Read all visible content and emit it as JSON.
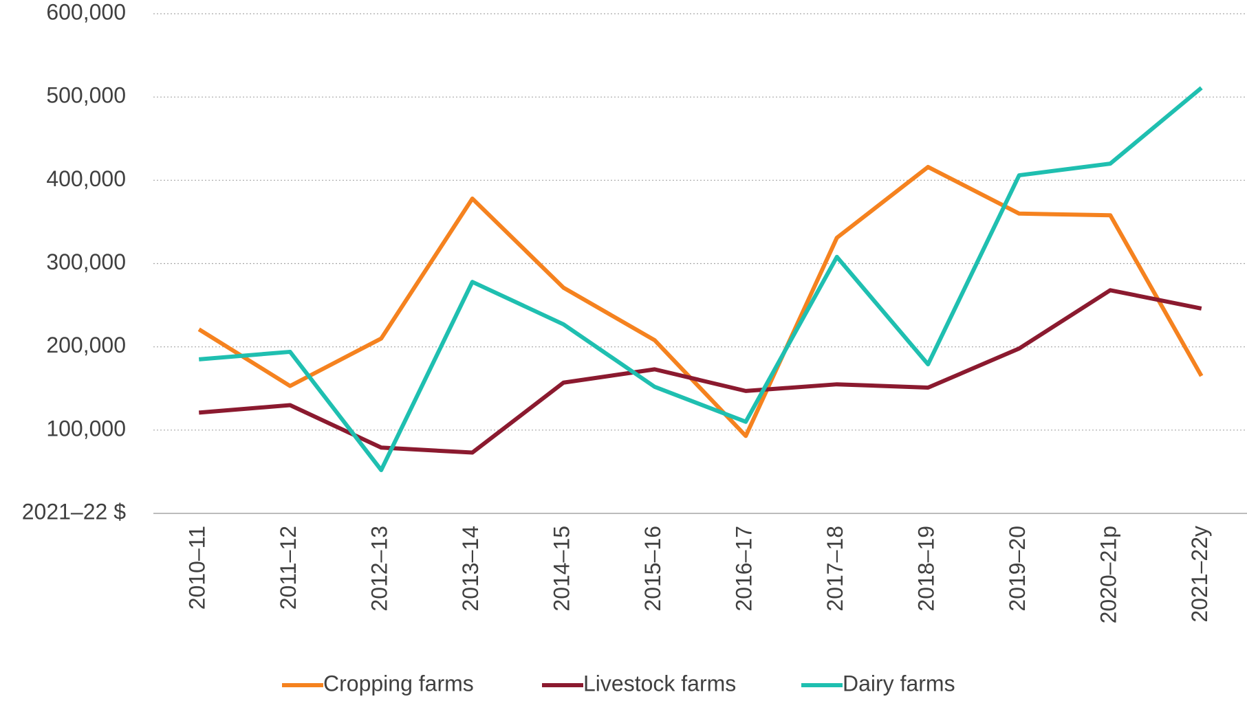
{
  "chart_data": {
    "type": "line",
    "categories": [
      "2010–11",
      "2011–12",
      "2012–13",
      "2013–14",
      "2014–15",
      "2015–16",
      "2016–17",
      "2017–18",
      "2018–19",
      "2019–20",
      "2020–21p",
      "2021–22y"
    ],
    "series": [
      {
        "name": "Cropping farms",
        "color": "#f5821f",
        "values": [
          221000,
          153000,
          210000,
          378000,
          271000,
          208000,
          93000,
          331000,
          416000,
          360000,
          358000,
          165000
        ]
      },
      {
        "name": "Livestock farms",
        "color": "#8b1a2f",
        "values": [
          121000,
          130000,
          79000,
          73000,
          157000,
          173000,
          147000,
          155000,
          151000,
          198000,
          268000,
          246000
        ]
      },
      {
        "name": "Dairy farms",
        "color": "#1fbfb0",
        "values": [
          185000,
          194000,
          52000,
          278000,
          227000,
          152000,
          110000,
          308000,
          179000,
          406000,
          420000,
          511000
        ]
      }
    ],
    "ylim": [
      0,
      600000
    ],
    "yticks": [
      {
        "value": 0,
        "label": "2021–22 $"
      },
      {
        "value": 100000,
        "label": "100,000"
      },
      {
        "value": 200000,
        "label": "200,000"
      },
      {
        "value": 300000,
        "label": "300,000"
      },
      {
        "value": 400000,
        "label": "400,000"
      },
      {
        "value": 500000,
        "label": "500,000"
      },
      {
        "value": 600000,
        "label": "600,000"
      }
    ],
    "grid": true,
    "legend": "bottom"
  }
}
